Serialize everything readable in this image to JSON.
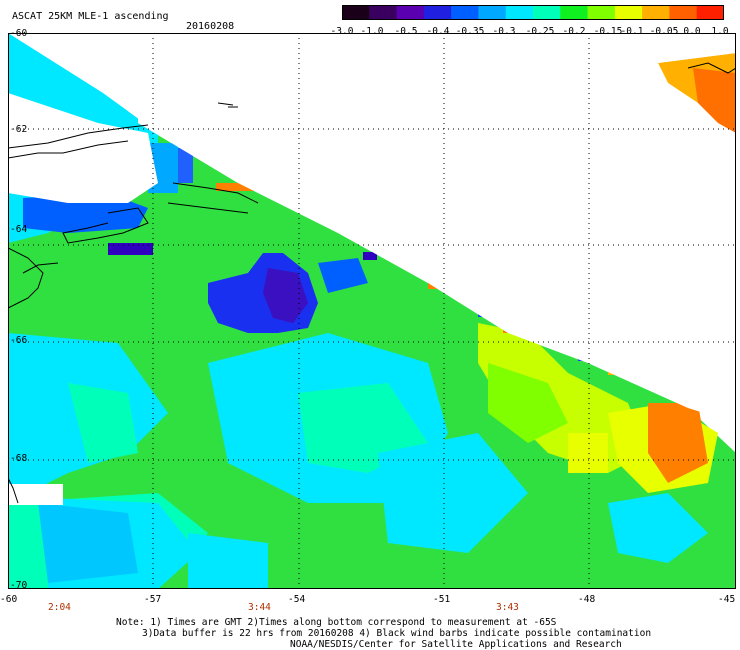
{
  "header": {
    "title": "ASCAT 25KM MLE-1 ascending",
    "date": "20160208"
  },
  "colorbar": {
    "labels": [
      "-3.0",
      "-1.0",
      "-0.5",
      "-0.4",
      "-0.35",
      "-0.3",
      "-0.25",
      "-0.2",
      "-0.15",
      "-0.1",
      "-0.05",
      "0.0",
      "1.0"
    ],
    "colors": [
      "#1a0018",
      "#3a0060",
      "#5a00b0",
      "#2020e0",
      "#0060ff",
      "#00a8ff",
      "#00e8ff",
      "#00ffb8",
      "#10f020",
      "#80ff00",
      "#e8ff00",
      "#ffb000",
      "#ff6000",
      "#ff2000"
    ]
  },
  "map": {
    "lat_labels": [
      "-60",
      "-62",
      "-64",
      "-66",
      "-68",
      "-70"
    ],
    "lon_labels": [
      "-60",
      "-57",
      "-54",
      "-51",
      "-48",
      "-45"
    ],
    "time_labels": [
      "2:04",
      "3:44",
      "3:43"
    ]
  },
  "notes": {
    "line1": "Note: 1) Times are GMT 2)Times along bottom correspond to measurement at -65S",
    "line2": "3)Data buffer is 22 hrs from 20160208 4) Black wind barbs indicate possible contamination",
    "line3": "NOAA/NESDIS/Center for Satellite Applications and Research"
  }
}
